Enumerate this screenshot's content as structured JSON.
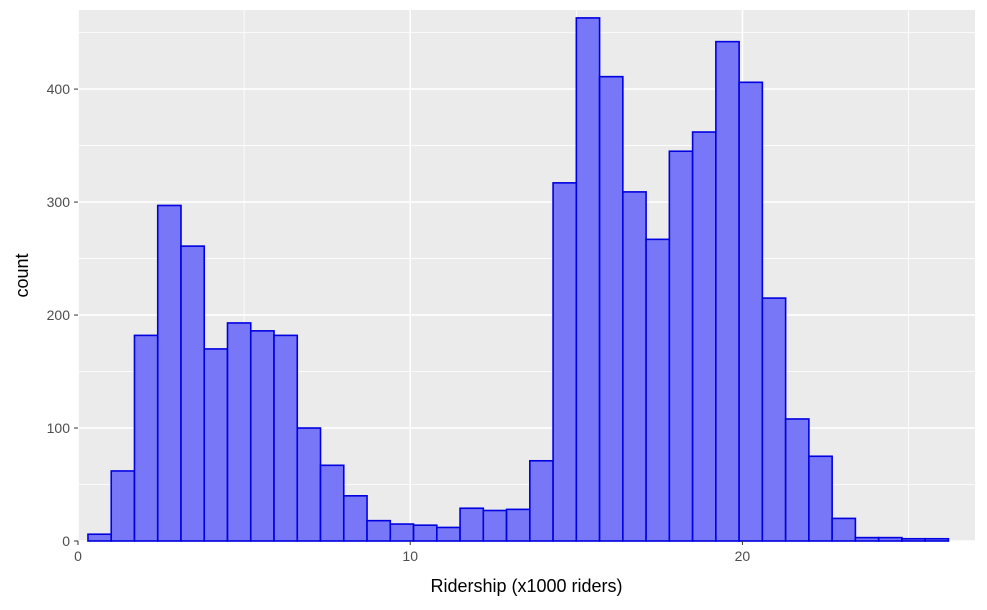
{
  "chart_data": {
    "type": "bar",
    "subtype": "histogram",
    "xlabel": "Ridership (x1000 riders)",
    "ylabel": "count",
    "xlim": [
      0,
      27
    ],
    "ylim": [
      0,
      470
    ],
    "x_ticks": [
      0,
      10,
      20
    ],
    "y_ticks": [
      0,
      100,
      200,
      300,
      400
    ],
    "grid": true,
    "bin_width": 0.7,
    "bins": [
      {
        "start": 0.3,
        "end": 1.0,
        "count": 6
      },
      {
        "start": 1.0,
        "end": 1.7,
        "count": 62
      },
      {
        "start": 1.7,
        "end": 2.4,
        "count": 182
      },
      {
        "start": 2.4,
        "end": 3.1,
        "count": 297
      },
      {
        "start": 3.1,
        "end": 3.8,
        "count": 261
      },
      {
        "start": 3.8,
        "end": 4.5,
        "count": 170
      },
      {
        "start": 4.5,
        "end": 5.2,
        "count": 193
      },
      {
        "start": 5.2,
        "end": 5.9,
        "count": 186
      },
      {
        "start": 5.9,
        "end": 6.6,
        "count": 182
      },
      {
        "start": 6.6,
        "end": 7.3,
        "count": 100
      },
      {
        "start": 7.3,
        "end": 8.0,
        "count": 67
      },
      {
        "start": 8.0,
        "end": 8.7,
        "count": 40
      },
      {
        "start": 8.7,
        "end": 9.4,
        "count": 18
      },
      {
        "start": 9.4,
        "end": 10.1,
        "count": 15
      },
      {
        "start": 10.1,
        "end": 10.8,
        "count": 14
      },
      {
        "start": 10.8,
        "end": 11.5,
        "count": 12
      },
      {
        "start": 11.5,
        "end": 12.2,
        "count": 29
      },
      {
        "start": 12.2,
        "end": 12.9,
        "count": 27
      },
      {
        "start": 12.9,
        "end": 13.6,
        "count": 28
      },
      {
        "start": 13.6,
        "end": 14.3,
        "count": 71
      },
      {
        "start": 14.3,
        "end": 15.0,
        "count": 317
      },
      {
        "start": 15.0,
        "end": 15.7,
        "count": 463
      },
      {
        "start": 15.7,
        "end": 16.4,
        "count": 411
      },
      {
        "start": 16.4,
        "end": 17.1,
        "count": 309
      },
      {
        "start": 17.1,
        "end": 17.8,
        "count": 267
      },
      {
        "start": 17.8,
        "end": 18.5,
        "count": 345
      },
      {
        "start": 18.5,
        "end": 19.2,
        "count": 362
      },
      {
        "start": 19.2,
        "end": 19.9,
        "count": 442
      },
      {
        "start": 19.9,
        "end": 20.6,
        "count": 406
      },
      {
        "start": 20.6,
        "end": 21.3,
        "count": 215
      },
      {
        "start": 21.3,
        "end": 22.0,
        "count": 108
      },
      {
        "start": 22.0,
        "end": 22.7,
        "count": 75
      },
      {
        "start": 22.7,
        "end": 23.4,
        "count": 20
      },
      {
        "start": 23.4,
        "end": 24.1,
        "count": 3
      },
      {
        "start": 24.1,
        "end": 24.8,
        "count": 3
      },
      {
        "start": 24.8,
        "end": 25.5,
        "count": 2
      },
      {
        "start": 25.5,
        "end": 26.2,
        "count": 2
      }
    ],
    "colors": {
      "panel_background": "#ebebeb",
      "grid_major": "#ffffff",
      "bar_fill": "#7777f7",
      "bar_stroke": "#0000e0",
      "tick_mark": "#333333"
    }
  }
}
